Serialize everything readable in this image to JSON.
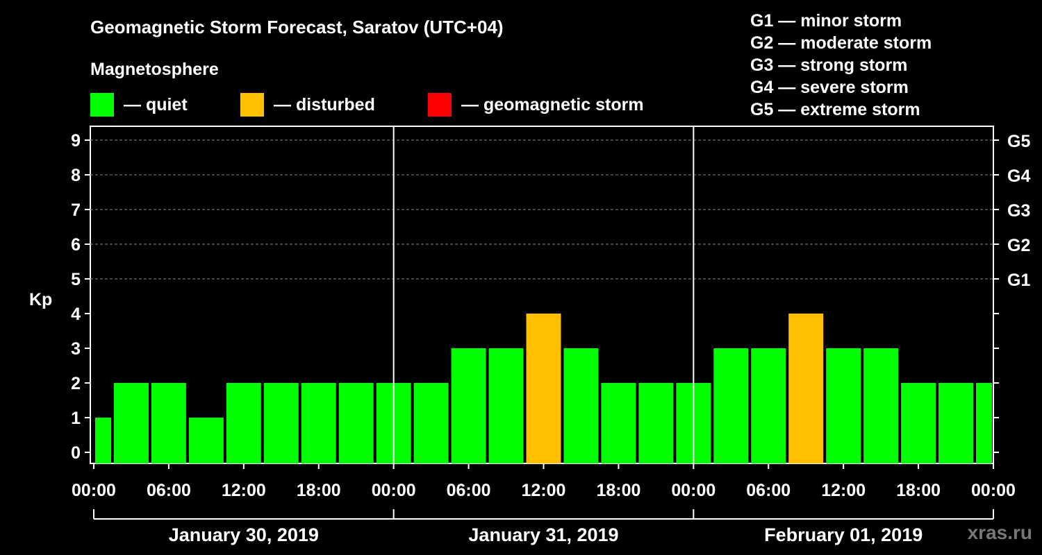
{
  "title": "Geomagnetic Storm Forecast, Saratov (UTC+04)",
  "legend": {
    "heading": "Magnetosphere",
    "items": [
      {
        "label": "— quiet",
        "color": "#00ff00"
      },
      {
        "label": "— disturbed",
        "color": "#ffc000"
      },
      {
        "label": "— geomagnetic storm",
        "color": "#ff0000"
      }
    ]
  },
  "g_scale": [
    "G1 — minor storm",
    "G2 — moderate storm",
    "G3 — strong storm",
    "G4 — severe storm",
    "G5 — extreme storm"
  ],
  "watermark": "xras.ru",
  "chart_data": {
    "type": "bar",
    "ylabel": "Kp",
    "ylim": [
      0,
      9
    ],
    "y_ticks": [
      "0",
      "1",
      "2",
      "3",
      "4",
      "5",
      "6",
      "7",
      "8",
      "9"
    ],
    "right_axis_labels": [
      {
        "kp": 5,
        "label": "G1"
      },
      {
        "kp": 6,
        "label": "G2"
      },
      {
        "kp": 7,
        "label": "G3"
      },
      {
        "kp": 8,
        "label": "G4"
      },
      {
        "kp": 9,
        "label": "G5"
      }
    ],
    "grid": "dashed horizontal lines at Kp 5–9",
    "x_tick_labels": [
      "00:00",
      "06:00",
      "12:00",
      "18:00",
      "00:00",
      "06:00",
      "12:00",
      "18:00",
      "00:00",
      "06:00",
      "12:00",
      "18:00",
      "00:00"
    ],
    "days": [
      "January 30, 2019",
      "January 31, 2019",
      "February 01, 2019"
    ],
    "interval_hours": 3,
    "values": [
      1,
      2,
      2,
      1,
      2,
      2,
      2,
      2,
      2,
      2,
      3,
      3,
      4,
      3,
      2,
      2,
      2,
      3,
      3,
      4,
      3,
      3,
      2,
      2,
      2
    ],
    "colors": {
      "quiet": "#00ff00",
      "disturbed": "#ffc000",
      "storm": "#ff0000"
    }
  }
}
